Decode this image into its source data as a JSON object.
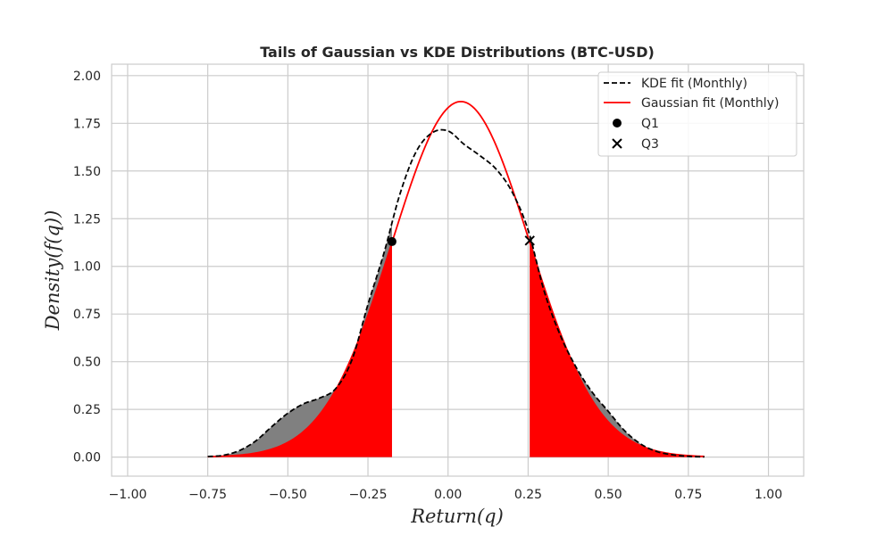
{
  "chart_data": {
    "type": "line",
    "title": "Tails of Gaussian vs KDE Distributions (BTC-USD)",
    "xlabel": "Return(q)",
    "ylabel": "Density(f(q))",
    "xlim": [
      -1.05,
      1.11
    ],
    "ylim": [
      -0.1,
      2.06
    ],
    "xticks": [
      -1.0,
      -0.75,
      -0.5,
      -0.25,
      0.0,
      0.25,
      0.5,
      0.75,
      1.0
    ],
    "xtick_labels": [
      "−1.00",
      "−0.75",
      "−0.50",
      "−0.25",
      "0.00",
      "0.25",
      "0.50",
      "0.75",
      "1.00"
    ],
    "yticks": [
      0.0,
      0.25,
      0.5,
      0.75,
      1.0,
      1.25,
      1.5,
      1.75,
      2.0
    ],
    "ytick_labels": [
      "0.00",
      "0.25",
      "0.50",
      "0.75",
      "1.00",
      "1.25",
      "1.50",
      "1.75",
      "2.00"
    ],
    "grid": true,
    "legend_position": "top-right",
    "series": [
      {
        "name": "KDE fit (Monthly)",
        "style": "dashed",
        "color": "#000000",
        "x": [
          -0.75,
          -0.7,
          -0.65,
          -0.6,
          -0.55,
          -0.5,
          -0.45,
          -0.4,
          -0.35,
          -0.3,
          -0.25,
          -0.2,
          -0.15,
          -0.1,
          -0.05,
          0.0,
          0.05,
          0.1,
          0.15,
          0.2,
          0.25,
          0.3,
          0.35,
          0.4,
          0.45,
          0.5,
          0.55,
          0.6,
          0.65,
          0.7,
          0.75,
          0.8
        ],
        "y": [
          0.003,
          0.01,
          0.035,
          0.085,
          0.16,
          0.23,
          0.28,
          0.31,
          0.36,
          0.51,
          0.8,
          1.07,
          1.38,
          1.6,
          1.7,
          1.71,
          1.64,
          1.58,
          1.51,
          1.39,
          1.19,
          0.87,
          0.64,
          0.47,
          0.34,
          0.24,
          0.14,
          0.07,
          0.03,
          0.012,
          0.004,
          0.001
        ]
      },
      {
        "name": "Gaussian fit (Monthly)",
        "style": "solid",
        "color": "#ff0000",
        "mean": 0.04,
        "std": 0.214,
        "x_range": [
          -0.75,
          0.8
        ]
      },
      {
        "name": "Q1",
        "type": "scatter",
        "marker": "circle",
        "color": "#000000",
        "x": -0.175,
        "y": 1.13
      },
      {
        "name": "Q3",
        "type": "scatter",
        "marker": "x",
        "color": "#000000",
        "x": 0.255,
        "y": 1.135
      }
    ],
    "fills": {
      "gaussian_tail_color": "#ff0000",
      "kde_tail_color": "#808080",
      "left_tail_x": [
        -0.75,
        -0.175
      ],
      "right_tail_x": [
        0.255,
        0.8
      ]
    }
  }
}
